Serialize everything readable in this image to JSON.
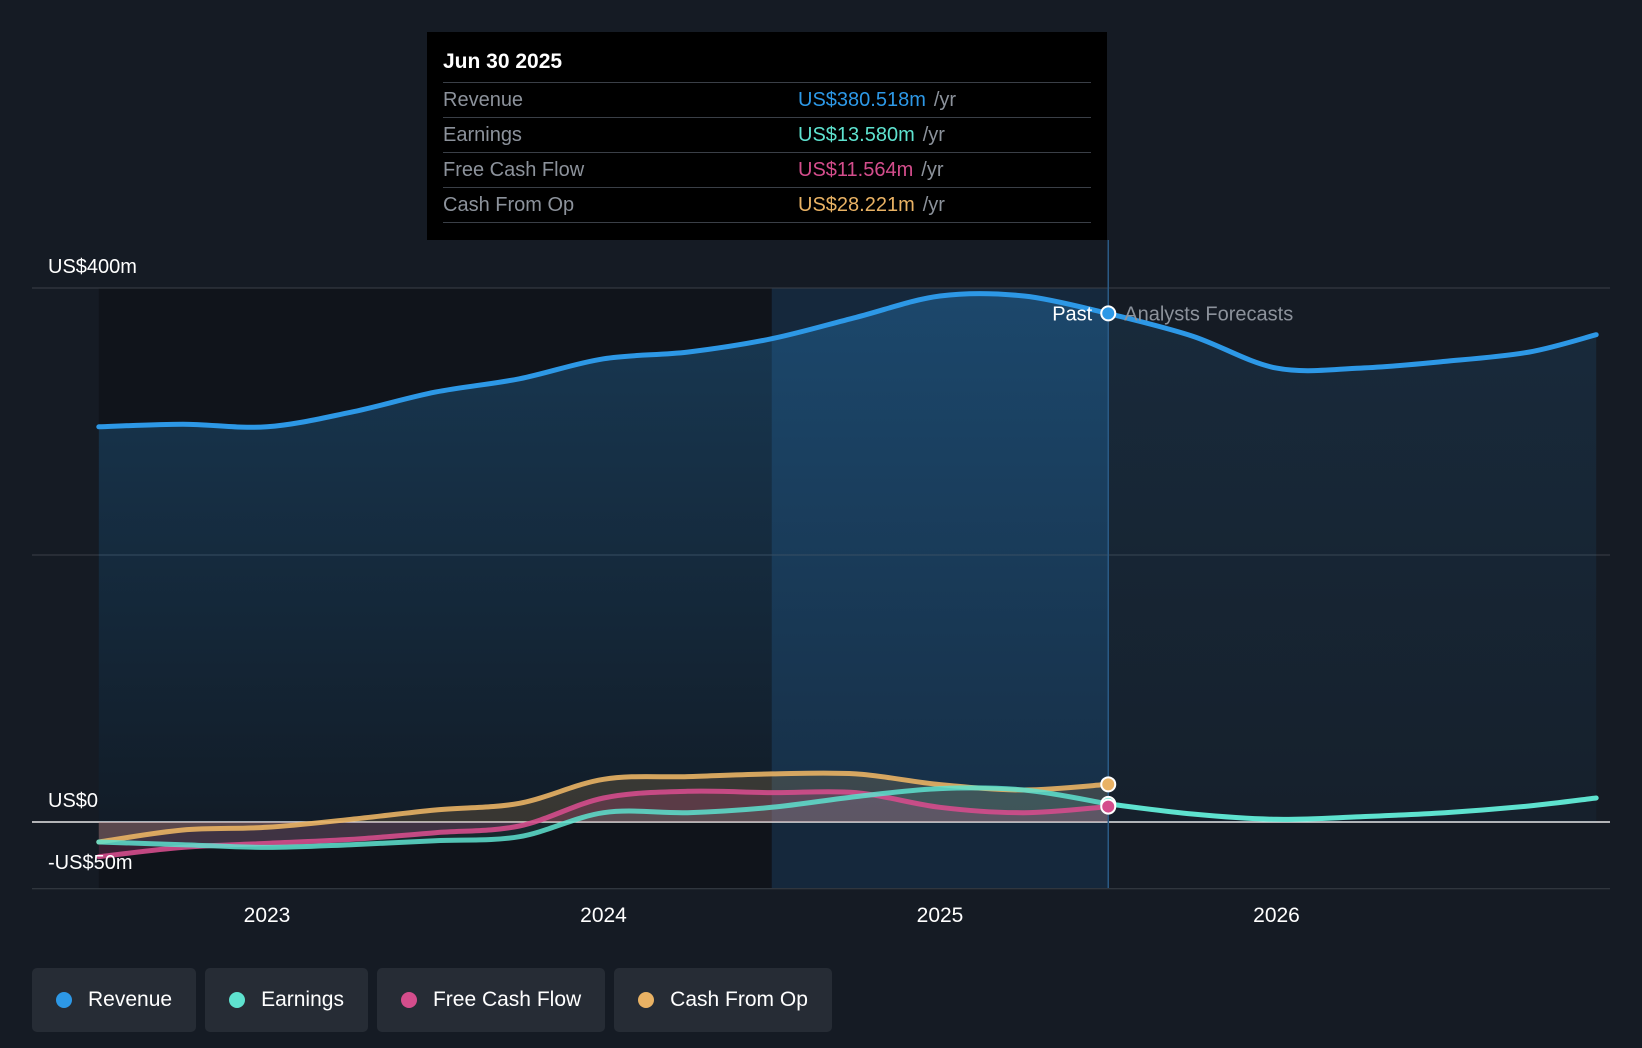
{
  "colors": {
    "revenue": "#2d98e6",
    "earnings": "#5ee2cf",
    "free_cash_flow": "#d44d8c",
    "cash_from_op": "#e9b264",
    "background": "#151b24"
  },
  "tooltip": {
    "date": "Jun 30 2025",
    "unit": "/yr",
    "rows": [
      {
        "label": "Revenue",
        "value": "US$380.518m"
      },
      {
        "label": "Earnings",
        "value": "US$13.580m"
      },
      {
        "label": "Free Cash Flow",
        "value": "US$11.564m"
      },
      {
        "label": "Cash From Op",
        "value": "US$28.221m"
      }
    ]
  },
  "markers": {
    "past": "Past",
    "forecast": "Analysts Forecasts"
  },
  "legend": [
    {
      "label": "Revenue",
      "icon": "revenue-dot-icon"
    },
    {
      "label": "Earnings",
      "icon": "earnings-dot-icon"
    },
    {
      "label": "Free Cash Flow",
      "icon": "free-cash-flow-dot-icon"
    },
    {
      "label": "Cash From Op",
      "icon": "cash-from-op-dot-icon"
    }
  ],
  "chart_data": {
    "type": "line",
    "title": "",
    "xlabel": "",
    "ylabel": "",
    "ylim": [
      -50,
      400
    ],
    "xlim": [
      2022.3,
      2026.95
    ],
    "y_tick_labels": [
      {
        "value": 400,
        "label": "US$400m"
      },
      {
        "value": 0,
        "label": "US$0"
      },
      {
        "value": -50,
        "label": "-US$50m"
      }
    ],
    "y_gridlines": [
      400,
      200,
      0,
      -50
    ],
    "x_tick_labels": [
      {
        "value": 2023,
        "label": "2023"
      },
      {
        "value": 2024,
        "label": "2024"
      },
      {
        "value": 2025,
        "label": "2025"
      },
      {
        "value": 2026,
        "label": "2026"
      }
    ],
    "past_end": 2025.5,
    "highlight_start": 2024.5,
    "series": [
      {
        "name": "Revenue",
        "x": [
          2022.5,
          2022.75,
          2023.0,
          2023.25,
          2023.5,
          2023.75,
          2024.0,
          2024.25,
          2024.5,
          2024.75,
          2025.0,
          2025.25,
          2025.5
        ],
        "values": [
          296,
          298,
          296,
          307,
          322,
          332,
          347,
          352,
          362,
          378,
          394,
          394,
          381
        ]
      },
      {
        "name": "Revenue Forecast",
        "x": [
          2025.5,
          2025.75,
          2026.0,
          2026.25,
          2026.5,
          2026.75,
          2026.95
        ],
        "values": [
          381,
          364,
          340,
          340,
          345,
          352,
          365
        ]
      },
      {
        "name": "Earnings",
        "x": [
          2022.5,
          2022.75,
          2023.0,
          2023.25,
          2023.5,
          2023.75,
          2024.0,
          2024.25,
          2024.5,
          2024.75,
          2025.0,
          2025.25,
          2025.5
        ],
        "values": [
          -15,
          -17,
          -19,
          -17,
          -14,
          -11,
          7,
          7,
          11,
          19,
          25,
          24,
          13.58
        ]
      },
      {
        "name": "Earnings Forecast",
        "x": [
          2025.5,
          2025.75,
          2026.0,
          2026.25,
          2026.5,
          2026.75,
          2026.95
        ],
        "values": [
          13.58,
          6,
          2,
          4,
          7,
          12,
          18
        ]
      },
      {
        "name": "Free Cash Flow",
        "x": [
          2022.5,
          2022.75,
          2023.0,
          2023.25,
          2023.5,
          2023.75,
          2024.0,
          2024.25,
          2024.5,
          2024.75,
          2025.0,
          2025.25,
          2025.5
        ],
        "values": [
          -26,
          -19,
          -16,
          -13,
          -8,
          -3,
          18,
          23,
          22,
          22,
          11,
          7,
          11.56
        ]
      },
      {
        "name": "Cash From Op",
        "x": [
          2022.5,
          2022.75,
          2023.0,
          2023.25,
          2023.5,
          2023.75,
          2024.0,
          2024.25,
          2024.5,
          2024.75,
          2025.0,
          2025.25,
          2025.5
        ],
        "values": [
          -15,
          -6,
          -4,
          2,
          9,
          14,
          32,
          34,
          36,
          36,
          28,
          24,
          28.22
        ]
      }
    ]
  }
}
